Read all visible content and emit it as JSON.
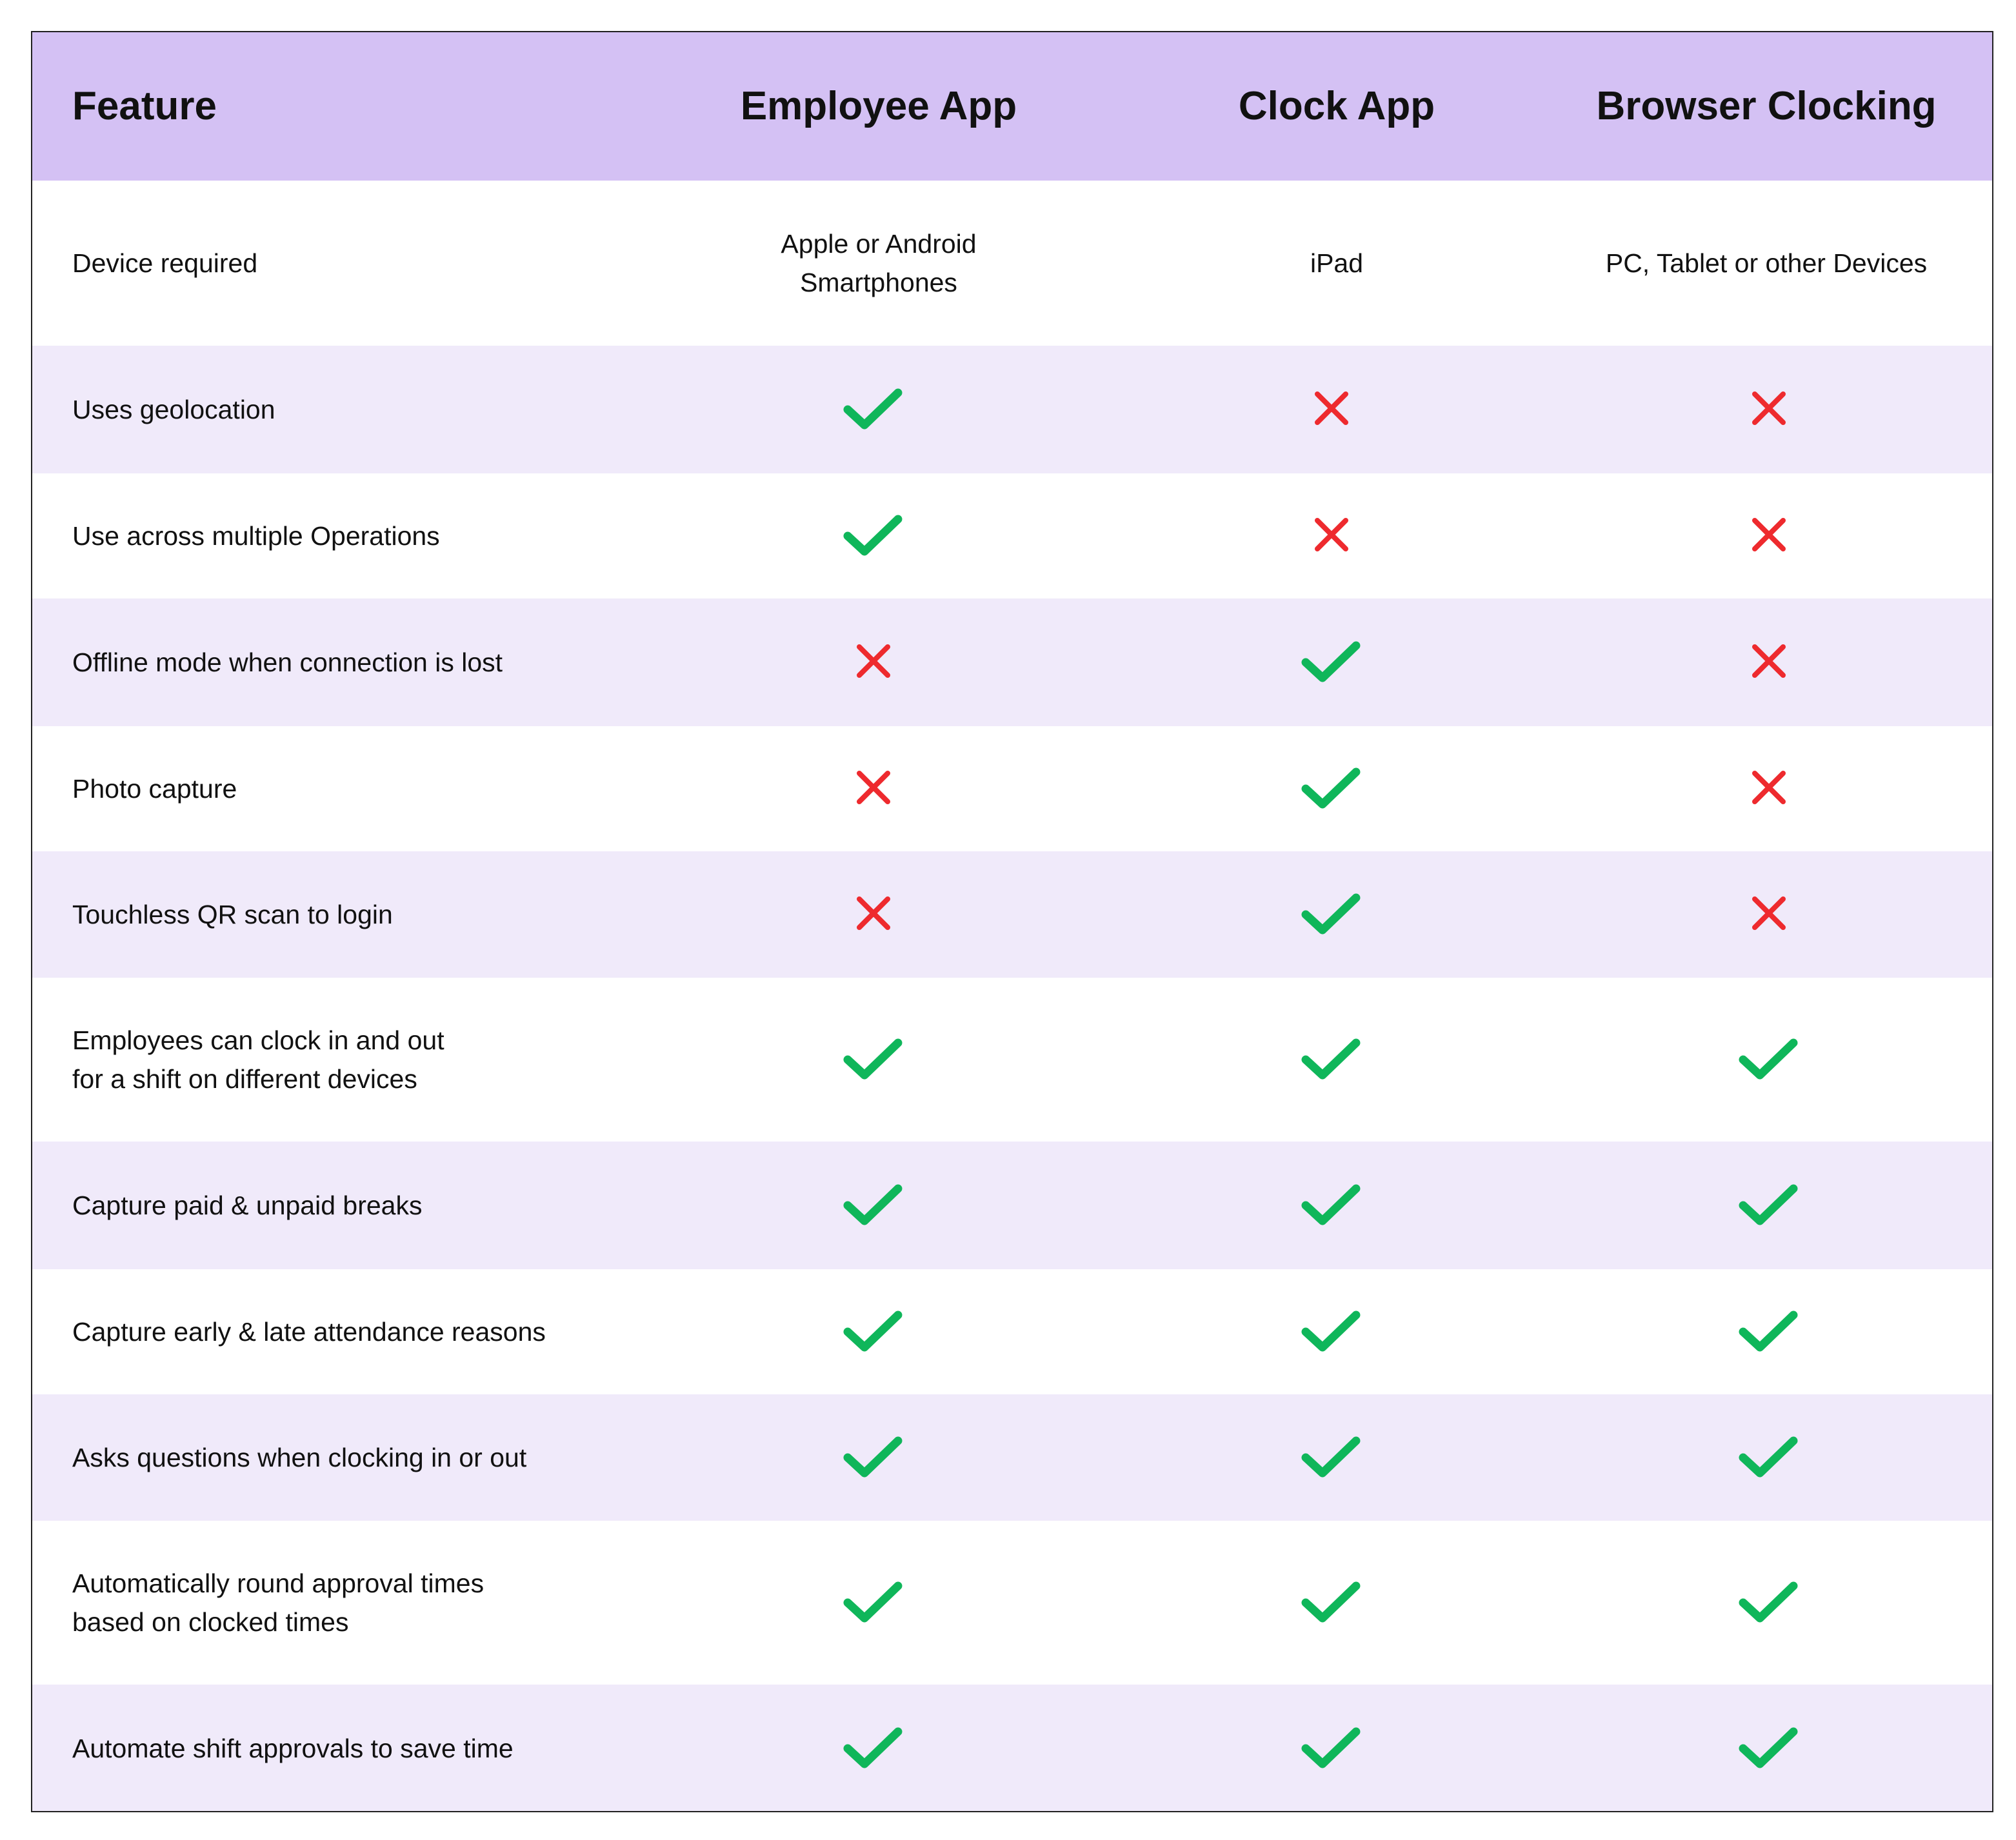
{
  "table": {
    "header": [
      "Feature",
      "Employee App",
      "Clock App",
      "Browser Clocking"
    ],
    "rows": [
      [
        "Device required",
        "Apple or Android\nSmartphones",
        "iPad",
        "PC, Tablet or other Devices"
      ],
      [
        "Uses geolocation",
        true,
        false,
        false
      ],
      [
        "Use across multiple Operations",
        true,
        false,
        false
      ],
      [
        "Offline mode when connection is lost",
        false,
        true,
        false
      ],
      [
        "Photo capture",
        false,
        true,
        false
      ],
      [
        "Touchless QR scan to login",
        false,
        true,
        false
      ],
      [
        "Employees can clock in and out\nfor a shift on different devices",
        true,
        true,
        true
      ],
      [
        "Capture paid & unpaid breaks",
        true,
        true,
        true
      ],
      [
        "Capture early & late attendance reasons",
        true,
        true,
        true
      ],
      [
        "Asks questions when clocking in or out",
        true,
        true,
        true
      ],
      [
        "Automatically round approval times\nbased on clocked times",
        true,
        true,
        true
      ],
      [
        "Automate shift approvals to save time",
        true,
        true,
        true
      ]
    ]
  }
}
